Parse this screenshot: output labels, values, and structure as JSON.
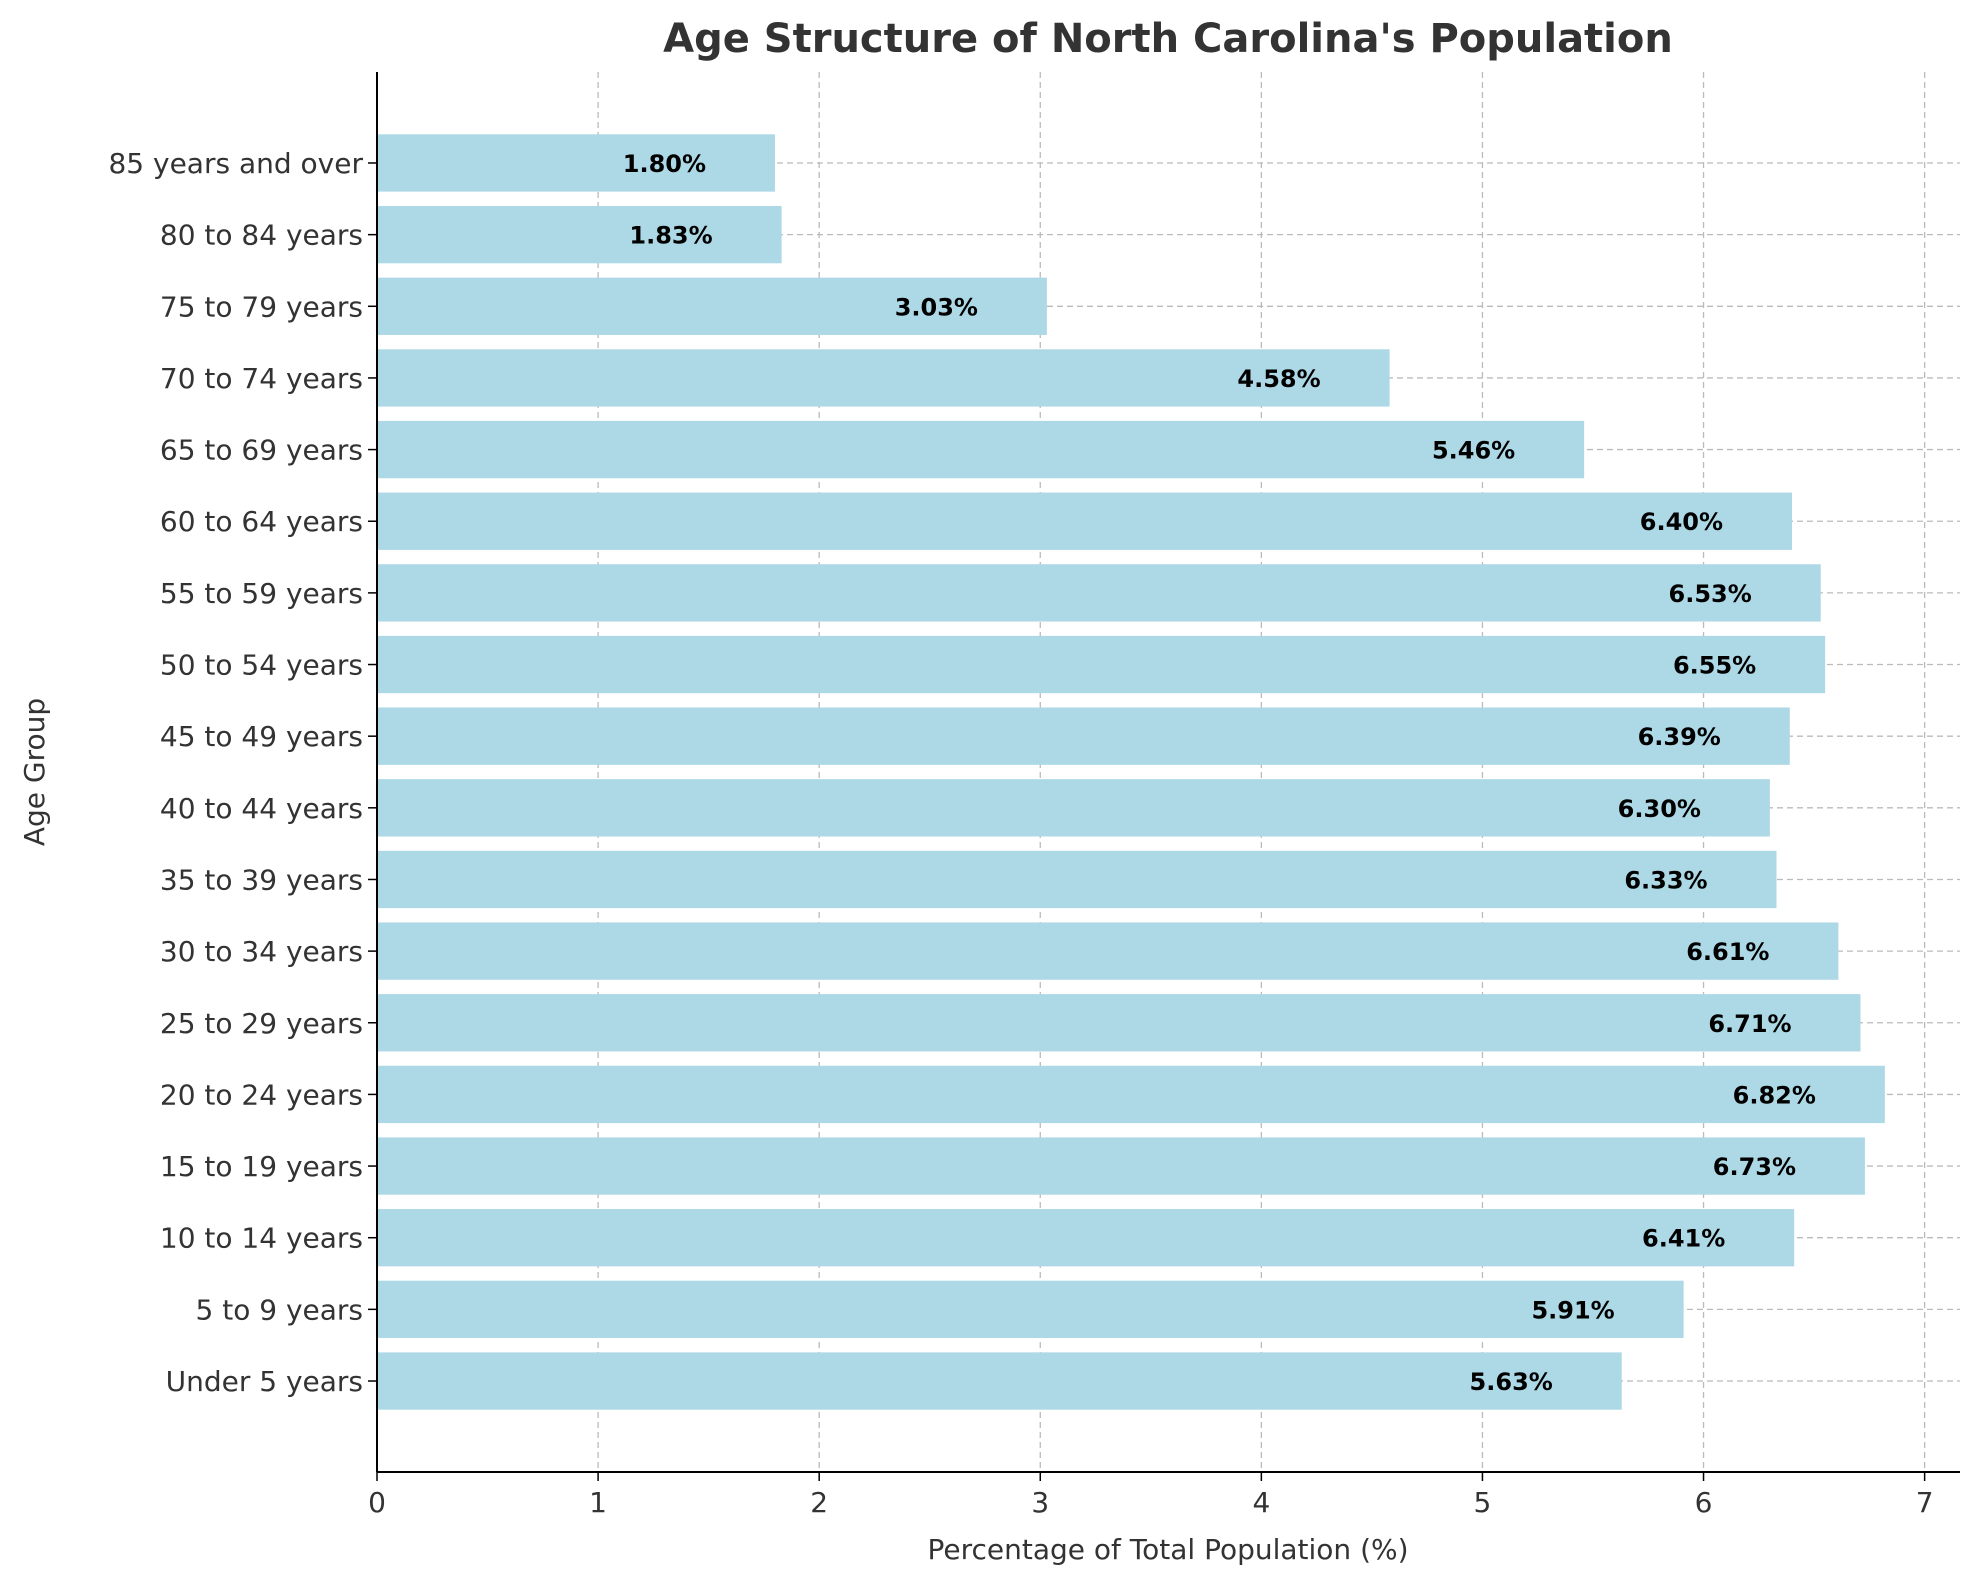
{
  "chart_data": {
    "type": "bar",
    "orientation": "horizontal",
    "title": "Age Structure of North Carolina's Population",
    "xlabel": "Percentage of Total Population (%)",
    "ylabel": "Age Group",
    "categories": [
      "Under 5 years",
      "5 to 9 years",
      "10 to 14 years",
      "15 to 19 years",
      "20 to 24 years",
      "25 to 29 years",
      "30 to 34 years",
      "35 to 39 years",
      "40 to 44 years",
      "45 to 49 years",
      "50 to 54 years",
      "55 to 59 years",
      "60 to 64 years",
      "65 to 69 years",
      "70 to 74 years",
      "75 to 79 years",
      "80 to 84 years",
      "85 years and over"
    ],
    "values": [
      5.63,
      5.91,
      6.41,
      6.73,
      6.82,
      6.71,
      6.61,
      6.33,
      6.3,
      6.39,
      6.55,
      6.53,
      6.4,
      5.46,
      4.58,
      3.03,
      1.83,
      1.8
    ],
    "data_labels": [
      "5.63%",
      "5.91%",
      "6.41%",
      "6.73%",
      "6.82%",
      "6.71%",
      "6.61%",
      "6.33%",
      "6.30%",
      "6.39%",
      "6.55%",
      "6.53%",
      "6.40%",
      "5.46%",
      "4.58%",
      "3.03%",
      "1.83%",
      "1.80%"
    ],
    "xticks": [
      "0",
      "1",
      "2",
      "3",
      "4",
      "5",
      "6",
      "7"
    ],
    "xlim": [
      0,
      7.16
    ],
    "grid": true,
    "bar_color": "#add8e6",
    "legend": "none"
  }
}
